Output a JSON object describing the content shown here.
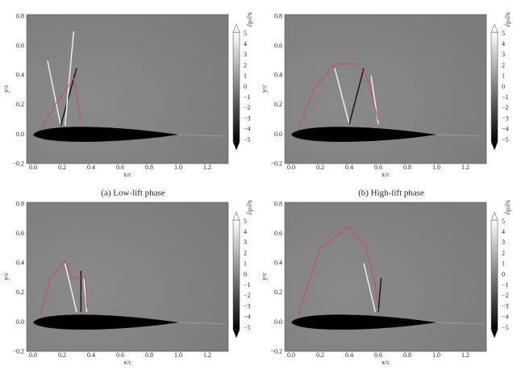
{
  "axes": {
    "xlabel": "x/c",
    "ylabel": "y/c",
    "xticks": [
      "0.0",
      "0.2",
      "0.4",
      "0.6",
      "0.8",
      "1.0",
      "1.2"
    ],
    "yticks": [
      "0.8",
      "0.6",
      "0.4",
      "0.2",
      "0.0",
      "−0.2"
    ],
    "colorbar_label": "∂ρ/∂x",
    "colorbar_ticks": [
      "5",
      "4",
      "3",
      "2",
      "1",
      "0",
      "−1",
      "−2",
      "−3",
      "−4",
      "−5"
    ]
  },
  "panels": [
    {
      "caption": "(a) Low-lift phase"
    },
    {
      "caption": "(b) High-lift phase"
    },
    {},
    {}
  ]
}
